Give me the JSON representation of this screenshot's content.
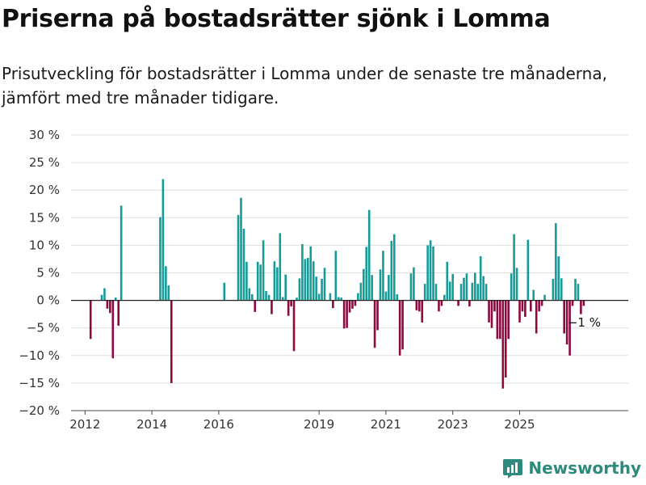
{
  "header": {
    "title": "Priserna på bostadsrätter sjönk i Lomma",
    "subtitle": "Prisutveckling för bostadsrätter i Lomma under de senaste tre månaderna, jämfört med tre månader tidigare."
  },
  "brand": {
    "name": "Newsworthy",
    "icon": "newsworthy-logo-icon"
  },
  "colors": {
    "positive": "#169c97",
    "negative": "#8c0a3f",
    "grid": "#dddddd",
    "zero": "#222222"
  },
  "chart_data": {
    "type": "bar",
    "x_unit": "month",
    "x_start": "2011-09",
    "ylim": [
      -20,
      30
    ],
    "yticks": [
      -20,
      -15,
      -10,
      -5,
      0,
      5,
      10,
      15,
      20,
      25,
      30
    ],
    "ytick_labels": [
      "−20 %",
      "−15 %",
      "−10 %",
      "−5 %",
      "0 %",
      "5 %",
      "10 %",
      "15 %",
      "20 %",
      "25 %",
      "30 %"
    ],
    "xticks": [
      "2012",
      "2014",
      "2016",
      "2019",
      "2021",
      "2023",
      "2025"
    ],
    "grid": true,
    "values": [
      null,
      null,
      null,
      null,
      null,
      null,
      -7,
      null,
      null,
      null,
      1,
      2.2,
      -1.5,
      -2.3,
      -10.5,
      0.5,
      -4.6,
      17.2,
      null,
      null,
      null,
      null,
      null,
      null,
      null,
      null,
      null,
      null,
      null,
      null,
      null,
      15.1,
      22,
      6.2,
      2.7,
      -15,
      null,
      null,
      null,
      null,
      null,
      null,
      null,
      null,
      null,
      null,
      null,
      null,
      null,
      null,
      null,
      null,
      null,
      null,
      3.2,
      null,
      null,
      null,
      null,
      15.5,
      18.6,
      13,
      7,
      2.2,
      1.1,
      -2.1,
      7,
      6.5,
      10.9,
      1.7,
      1,
      -2.5,
      7.1,
      6,
      12.2,
      0.6,
      4.7,
      -2.8,
      -1.1,
      -9.2,
      0.5,
      4,
      10.2,
      7.5,
      7.7,
      9.8,
      7.1,
      4.3,
      1.2,
      3.9,
      5.9,
      null,
      1.3,
      -1.4,
      9,
      0.6,
      0.5,
      -5.1,
      -5,
      -2.2,
      -1.5,
      -1,
      1.3,
      3.2,
      5.7,
      9.7,
      16.4,
      4.6,
      -8.6,
      -5.4,
      5.6,
      9,
      1.6,
      4.6,
      10.8,
      12,
      1.1,
      -10,
      -8.9,
      null,
      null,
      4.9,
      6,
      -1.8,
      -2,
      -4,
      3,
      10,
      10.9,
      9.8,
      3,
      -2,
      -1,
      1,
      7,
      3.4,
      4.8,
      null,
      -1,
      3,
      4.1,
      4.9,
      -1.1,
      3.2,
      5,
      3,
      8,
      4.4,
      3,
      -4,
      -5,
      -2,
      -7,
      -7,
      -16,
      -14,
      -7,
      4.9,
      12,
      5.9,
      -4,
      -2,
      -3,
      11,
      -2,
      1.9,
      -6,
      -2,
      -1,
      1,
      null,
      null,
      3.9,
      14,
      8,
      4,
      -6,
      -8,
      -10,
      -1,
      3.9,
      3,
      -2.5,
      -1
    ],
    "annotation": "−1 %",
    "annotation_text": "−1 %"
  }
}
